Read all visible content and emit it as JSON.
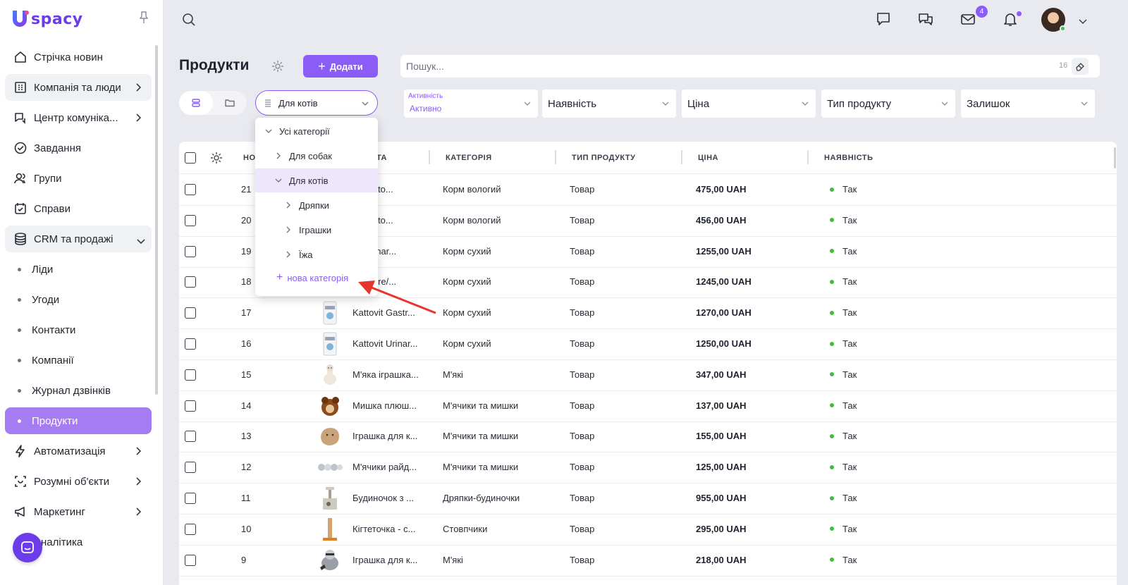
{
  "app": {
    "logo_text": "spacy"
  },
  "sidebar": {
    "items": [
      {
        "label": "Стрічка новин",
        "icon": "home-icon",
        "chevron": false,
        "style": "plain"
      },
      {
        "label": "Компанія та люди",
        "icon": "building-icon",
        "chevron": true,
        "style": "grey"
      },
      {
        "label": "Центр комуніка...",
        "icon": "communication-icon",
        "chevron": true,
        "style": "plain"
      },
      {
        "label": "Завдання",
        "icon": "check-circle-icon",
        "chevron": false,
        "style": "plain"
      },
      {
        "label": "Групи",
        "icon": "users-icon",
        "chevron": false,
        "style": "plain"
      },
      {
        "label": "Справи",
        "icon": "calendar-check-icon",
        "chevron": false,
        "style": "plain"
      },
      {
        "label": "CRM та продажі",
        "icon": "database-icon",
        "chevron": true,
        "style": "grey",
        "expanded": true
      },
      {
        "label": "Ліди",
        "sub": true
      },
      {
        "label": "Угоди",
        "sub": true
      },
      {
        "label": "Контакти",
        "sub": true
      },
      {
        "label": "Компанії",
        "sub": true
      },
      {
        "label": "Журнал дзвінків",
        "sub": true
      },
      {
        "label": "Продукти",
        "sub": true,
        "active": true
      },
      {
        "label": "Автоматизація",
        "icon": "bolt-icon",
        "chevron": true,
        "style": "plain"
      },
      {
        "label": "Розумні об'єкти",
        "icon": "smart-object-icon",
        "chevron": true,
        "style": "plain"
      },
      {
        "label": "Маркетинг",
        "icon": "marketing-icon",
        "chevron": true,
        "style": "plain"
      },
      {
        "label": "Аналітика",
        "icon": "chart-icon",
        "chevron": false,
        "style": "plain"
      }
    ]
  },
  "header": {
    "mail_badge": "4"
  },
  "page": {
    "title": "Продукти",
    "add_label": "Додати",
    "search_placeholder": "Пошук...",
    "search_count": "16",
    "category_select": "Для котів"
  },
  "filters": [
    {
      "label": "Активність",
      "value": "Активно",
      "stacked": true
    },
    {
      "label": "Наявність"
    },
    {
      "label": "Ціна"
    },
    {
      "label": "Тип продукту"
    },
    {
      "label": "Залишок"
    }
  ],
  "table": {
    "columns": {
      "number": "НО",
      "name": "ТА",
      "category": "КАТЕГОРІЯ",
      "type": "ТИП ПРОДУКТУ",
      "price": "ЦІНА",
      "availability": "НАЯВНІСТЬ"
    },
    "rows": [
      {
        "num": "21",
        "name": "ки Katto...",
        "category": "Корм вологий",
        "type": "Товар",
        "price": "475,00 UAH",
        "avail": "Так",
        "thumb": ""
      },
      {
        "num": "20",
        "name": "ки Katto...",
        "category": "Корм вологий",
        "type": "Товар",
        "price": "456,00 UAH",
        "avail": "Так",
        "thumb": ""
      },
      {
        "num": "19",
        "name": "vit Urinar...",
        "category": "Корм сухий",
        "type": "Товар",
        "price": "1255,00 UAH",
        "avail": "Так",
        "thumb": ""
      },
      {
        "num": "18",
        "name": "vit Niere/...",
        "category": "Корм сухий",
        "type": "Товар",
        "price": "1245,00 UAH",
        "avail": "Так",
        "thumb": ""
      },
      {
        "num": "17",
        "name": "Kattovit Gastr...",
        "category": "Корм сухий",
        "type": "Товар",
        "price": "1270,00 UAH",
        "avail": "Так",
        "thumb": "bag"
      },
      {
        "num": "16",
        "name": "Kattovit Urinar...",
        "category": "Корм сухий",
        "type": "Товар",
        "price": "1250,00 UAH",
        "avail": "Так",
        "thumb": "bag"
      },
      {
        "num": "15",
        "name": "М'яка іграшка...",
        "category": "М'які",
        "type": "Товар",
        "price": "347,00 UAH",
        "avail": "Так",
        "thumb": "llama"
      },
      {
        "num": "14",
        "name": "Мишка плюш...",
        "category": "М'ячики та мишки",
        "type": "Товар",
        "price": "137,00 UAH",
        "avail": "Так",
        "thumb": "mouse"
      },
      {
        "num": "13",
        "name": "Іграшка для к...",
        "category": "М'ячики та мишки",
        "type": "Товар",
        "price": "155,00 UAH",
        "avail": "Так",
        "thumb": "plush"
      },
      {
        "num": "12",
        "name": "М'ячики райд...",
        "category": "М'ячики та мишки",
        "type": "Товар",
        "price": "125,00 UAH",
        "avail": "Так",
        "thumb": "balls"
      },
      {
        "num": "11",
        "name": "Будиночок з ...",
        "category": "Дряпки-будиночки",
        "type": "Товар",
        "price": "955,00 UAH",
        "avail": "Так",
        "thumb": "house"
      },
      {
        "num": "10",
        "name": "Кігтеточка - с...",
        "category": "Стовпчики",
        "type": "Товар",
        "price": "295,00 UAH",
        "avail": "Так",
        "thumb": "post"
      },
      {
        "num": "9",
        "name": "Іграшка для к...",
        "category": "М'які",
        "type": "Товар",
        "price": "218,00 UAH",
        "avail": "Так",
        "thumb": "raccoon"
      }
    ]
  },
  "dropdown": {
    "items": [
      {
        "label": "Усі категорії",
        "level": 0,
        "expanded": true
      },
      {
        "label": "Для собак",
        "level": 1,
        "expanded": false
      },
      {
        "label": "Для котів",
        "level": 1,
        "expanded": true,
        "selected": true
      },
      {
        "label": "Дряпки",
        "level": 2,
        "expanded": false
      },
      {
        "label": "Іграшки",
        "level": 2,
        "expanded": false
      },
      {
        "label": "Їжа",
        "level": 2,
        "expanded": false
      }
    ],
    "new_category": "нова категорія"
  },
  "colors": {
    "accent": "#8b5cf6",
    "active_nav": "#a57cf2",
    "available_dot": "#3cbf3c",
    "annotation_arrow": "#e8352b"
  }
}
